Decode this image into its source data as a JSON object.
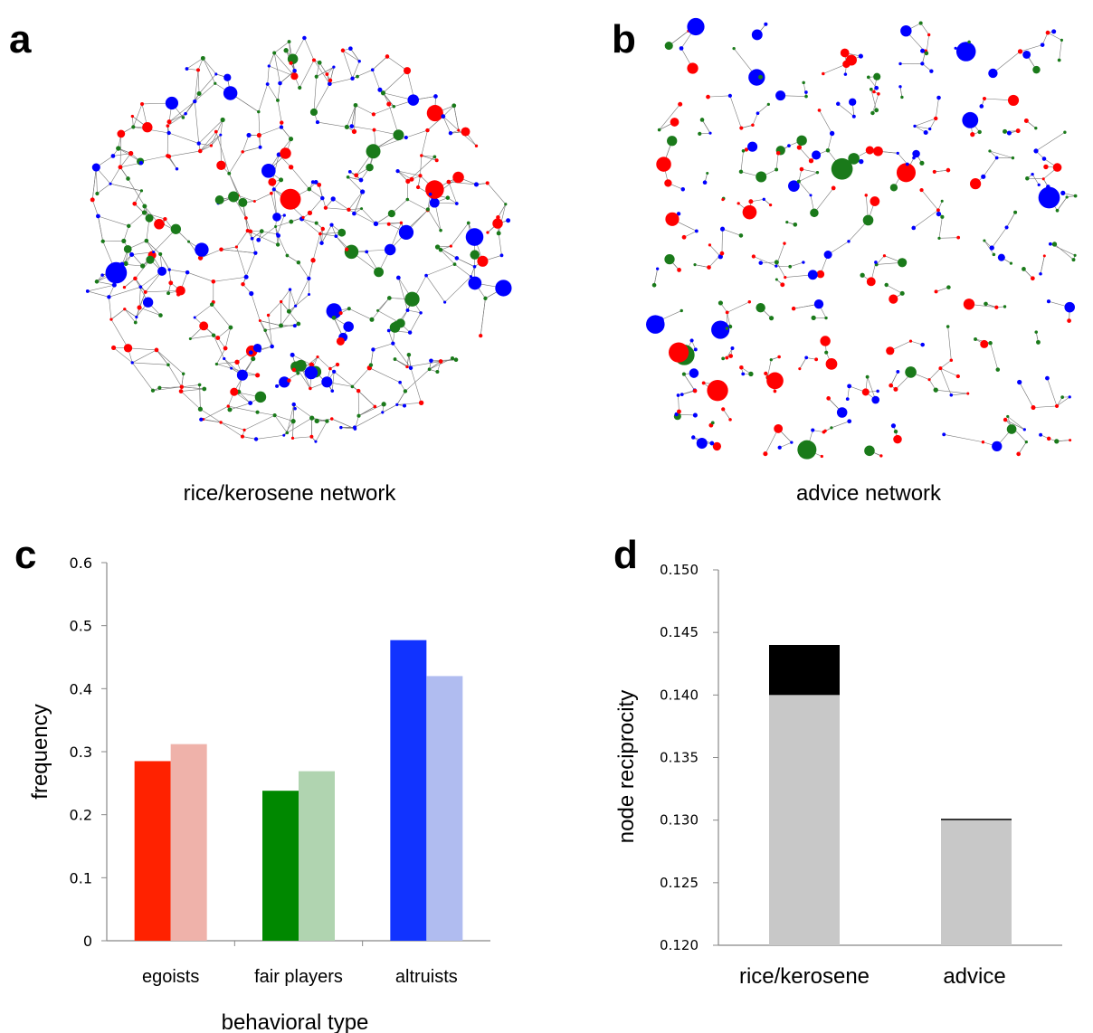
{
  "panels": {
    "a": {
      "letter": "a",
      "caption": "rice/kerosene network"
    },
    "b": {
      "letter": "b",
      "caption": "advice network"
    },
    "c": {
      "letter": "c"
    },
    "d": {
      "letter": "d"
    }
  },
  "colors": {
    "egoist": "#ff0000",
    "fair": "#1a7a1a",
    "altruist": "#0000ff",
    "edge": "#777777"
  },
  "chart_data": [
    {
      "type": "bar",
      "panel": "c",
      "categories": [
        "egoists",
        "fair players",
        "altruists"
      ],
      "series": [
        {
          "values": [
            0.285,
            0.238,
            0.477
          ],
          "colors": [
            "#ff2200",
            "#008800",
            "#1133ff"
          ]
        },
        {
          "values": [
            0.312,
            0.269,
            0.42
          ],
          "colors": [
            "#efb2aa",
            "#b0d4b0",
            "#b0bcf0"
          ]
        }
      ],
      "xlabel": "behavioral type",
      "ylabel": "frequency",
      "ylim": [
        0,
        0.6
      ],
      "yticks": [
        "0",
        "0.1",
        "0.2",
        "0.3",
        "0.4",
        "0.5",
        "0.6"
      ],
      "grid": false
    },
    {
      "type": "bar",
      "panel": "d",
      "categories": [
        "rice/kerosene",
        "advice"
      ],
      "values": [
        0.14,
        0.13
      ],
      "extension_top": [
        0.144,
        0.1301
      ],
      "bar_color": "#c8c8c8",
      "extension_color": "#000000",
      "ylabel": "node reciprocity",
      "ylim": [
        0.12,
        0.15
      ],
      "yticks": [
        "0.120",
        "0.125",
        "0.130",
        "0.135",
        "0.140",
        "0.145",
        "0.150"
      ],
      "grid": false
    }
  ]
}
